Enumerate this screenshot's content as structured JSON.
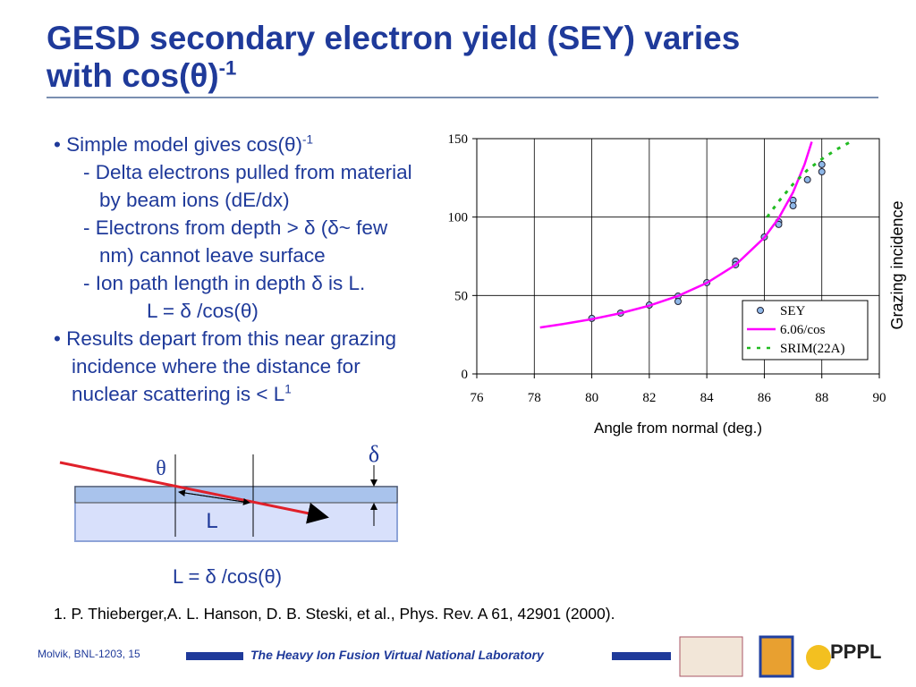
{
  "header": {
    "title_line1": "GESD secondary electron yield (SEY) varies",
    "title_line2": "with cos(θ)",
    "title_sup": "-1"
  },
  "bullets": [
    {
      "text": "Simple model gives cos(θ)",
      "sup": "-1",
      "subs": [
        "Delta electrons pulled from material by beam ions (dE/dx)",
        "Electrons from depth  > δ  (δ~ few nm) cannot leave surface",
        "Ion path length in depth δ is L."
      ],
      "formula": "L = δ /cos(θ)"
    },
    {
      "text": "Results depart from this near grazing incidence where the distance for nuclear scattering is < L",
      "sup": "1"
    }
  ],
  "diagram": {
    "theta": "θ",
    "delta": "δ",
    "length": "L",
    "formula": "L = δ /cos(θ)"
  },
  "footnote": "1. P. Thieberger,A. L. Hanson, D. B. Steski, et al., Phys. Rev. A 61, 42901 (2000).",
  "footer": {
    "author": "Molvik,  BNL-1203, 15",
    "lab": "The Heavy Ion Fusion Virtual National Laboratory",
    "logo": "PPPL"
  },
  "chart_data": {
    "type": "scatter",
    "x_label": "Angle from normal (deg.)",
    "y_label": "Grazing incidence",
    "xlim": [
      76,
      90
    ],
    "xticks": [
      76,
      78,
      80,
      82,
      84,
      86,
      88,
      90
    ],
    "ylim": [
      0,
      150
    ],
    "yticks": [
      0,
      50,
      100,
      150
    ],
    "grid": true,
    "legend": "lower right",
    "series": [
      {
        "name": "SEY",
        "style": "markers",
        "color": "#8fb8e8",
        "x": [
          80,
          81,
          82,
          83,
          83,
          84,
          85,
          85,
          86,
          86.5,
          86.5,
          87,
          87,
          87.5,
          88,
          88
        ],
        "values": [
          35.4,
          38.8,
          43.9,
          49.6,
          46.2,
          58.2,
          71.9,
          69.6,
          87.3,
          97,
          95.3,
          110.7,
          107.2,
          123.8,
          133.5,
          128.9
        ]
      },
      {
        "name": "6.06/cos",
        "style": "solid",
        "color": "#ff00ff",
        "x": [
          78.2,
          79,
          80,
          81,
          82,
          83,
          84,
          85,
          86,
          86.5,
          87,
          87.4,
          87.65
        ],
        "values": [
          29.6,
          31.8,
          34.9,
          38.7,
          43.5,
          49.7,
          58.0,
          69.5,
          86.9,
          99.3,
          115.8,
          133.6,
          148
        ]
      },
      {
        "name": "SRIM(22A)",
        "style": "dotted",
        "color": "#22bb22",
        "x": [
          86.1,
          86.5,
          87,
          87.5,
          88,
          88.5,
          89
        ],
        "values": [
          100,
          110,
          121,
          130,
          137,
          143,
          148
        ]
      }
    ]
  }
}
